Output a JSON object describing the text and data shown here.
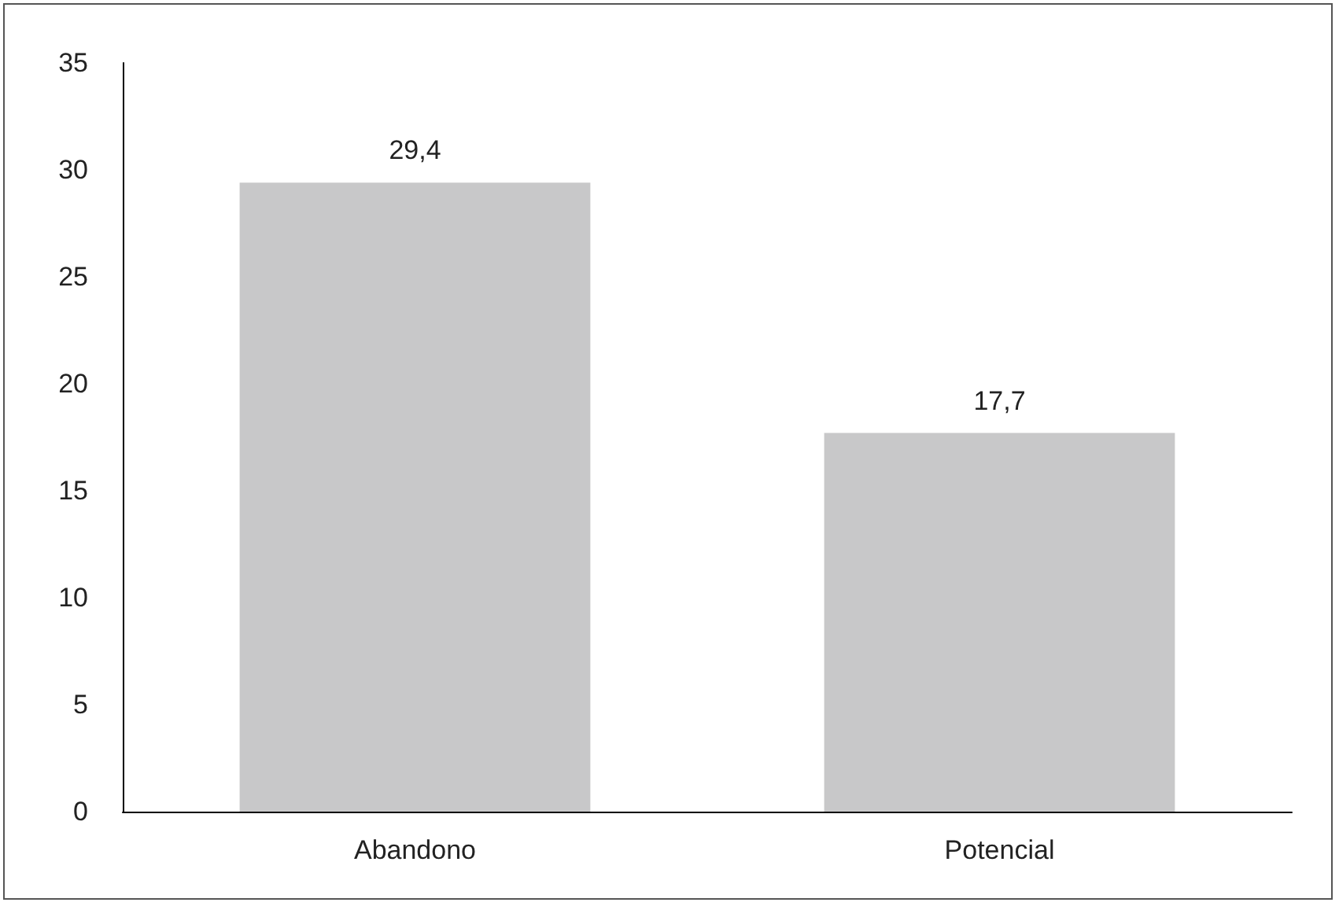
{
  "chart_data": {
    "type": "bar",
    "categories": [
      "Abandono",
      "Potencial"
    ],
    "values": [
      29.4,
      17.7
    ],
    "value_labels": [
      "29,4",
      "17,7"
    ],
    "color": "#c8c8c9",
    "ylim": [
      0,
      35
    ],
    "yticks": [
      0,
      5,
      10,
      15,
      20,
      25,
      30,
      35
    ],
    "grid": false
  }
}
